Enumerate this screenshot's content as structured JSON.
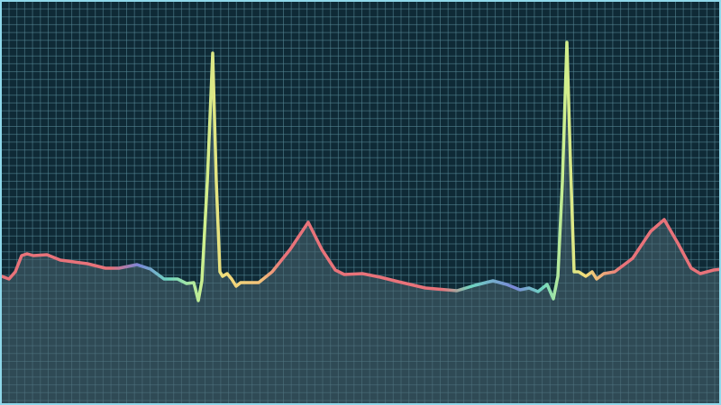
{
  "colors": {
    "background": "#0f2a36",
    "grid": "#5a8a99",
    "border": "#8fd8ea",
    "fill": "#3a5560",
    "trace_red": "#e8737a",
    "trace_blue": "#7a86d8",
    "trace_teal": "#6fd6c0",
    "trace_green": "#b8ee98",
    "trace_yellow": "#f2dc7a"
  },
  "icons": [
    "ecg-waveform"
  ]
}
